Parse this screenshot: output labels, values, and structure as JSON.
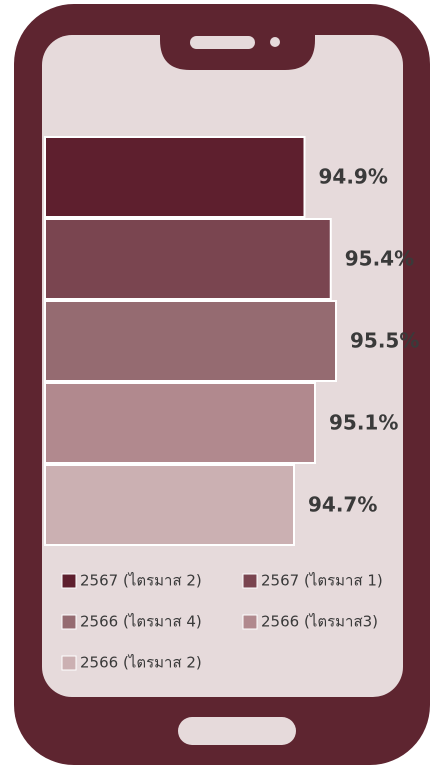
{
  "chart_data": {
    "type": "bar",
    "orientation": "horizontal",
    "series": [
      {
        "name": "2567 (ไตรมาส 2)",
        "color": "#5e1f2e",
        "values": [
          94.9
        ],
        "value_labels": [
          "94.9%"
        ]
      },
      {
        "name": "2567 (ไตรมาส 1)",
        "color": "#7a4550",
        "values": [
          95.4
        ],
        "value_labels": [
          "95.4%"
        ]
      },
      {
        "name": "2566 (ไตรมาส 4)",
        "color": "#956b71",
        "values": [
          95.5
        ],
        "value_labels": [
          "95.5%"
        ]
      },
      {
        "name": "2566 (ไตรมาส3)",
        "color": "#b1898e",
        "values": [
          95.1
        ],
        "value_labels": [
          "95.1%"
        ]
      },
      {
        "name": "2566 (ไตรมาส 2)",
        "color": "#cbb0b2",
        "values": [
          94.7
        ],
        "value_labels": [
          "94.7%"
        ]
      }
    ]
  }
}
